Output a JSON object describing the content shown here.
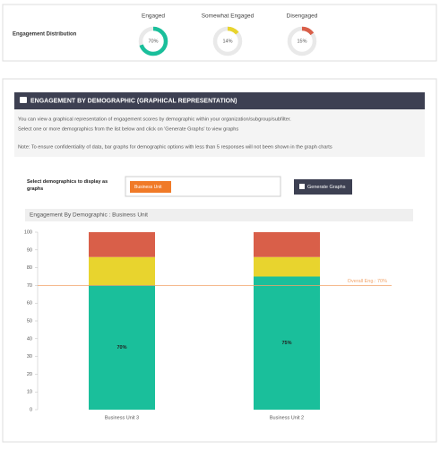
{
  "distribution": {
    "title": "Engagement Distribution",
    "items": [
      {
        "label": "Engaged",
        "value": 70,
        "value_label": "70%",
        "color": "#1abf9b"
      },
      {
        "label": "Somewhat Engaged",
        "value": 14,
        "value_label": "14%",
        "color": "#e8d42e"
      },
      {
        "label": "Disengaged",
        "value": 15,
        "value_label": "15%",
        "color": "#d95f49"
      }
    ]
  },
  "panel": {
    "header": "ENGAGEMENT BY DEMOGRAPHIC (GRAPHICAL REPRESENTATION)",
    "info": [
      "You can view a graphical representation of engagement scores by demographic within your organization/subgroup/subfilter.",
      "Select one or more demographics from the list below and click on 'Generate Graphs' to view graphs",
      "Note: To ensure confidentiality of data, bar graphs for demographic options with less than 5 responses will not been shown in the graph charts"
    ],
    "select_label": "Select demographics to display as graphs",
    "tag": "Business Unit",
    "button": "Generate Graphs"
  },
  "chart_data": {
    "type": "bar",
    "stacked": true,
    "title": "Engagement By Demographic : Business Unit",
    "categories": [
      "Business Unit 3",
      "Business Unit 2"
    ],
    "series": [
      {
        "color": "#1abf9b",
        "values": [
          70,
          75
        ],
        "value_labels": [
          "70%",
          "75%"
        ]
      },
      {
        "color": "#e8d42e",
        "values": [
          16,
          11
        ]
      },
      {
        "color": "#d95f49",
        "values": [
          14,
          14
        ]
      }
    ],
    "ylim": [
      0,
      100
    ],
    "yticks": [
      0,
      10,
      20,
      30,
      40,
      50,
      60,
      70,
      80,
      90,
      100
    ],
    "reference_line": {
      "value": 70,
      "label": "Overall Eng.: 70%",
      "color": "#f2a46a"
    }
  }
}
